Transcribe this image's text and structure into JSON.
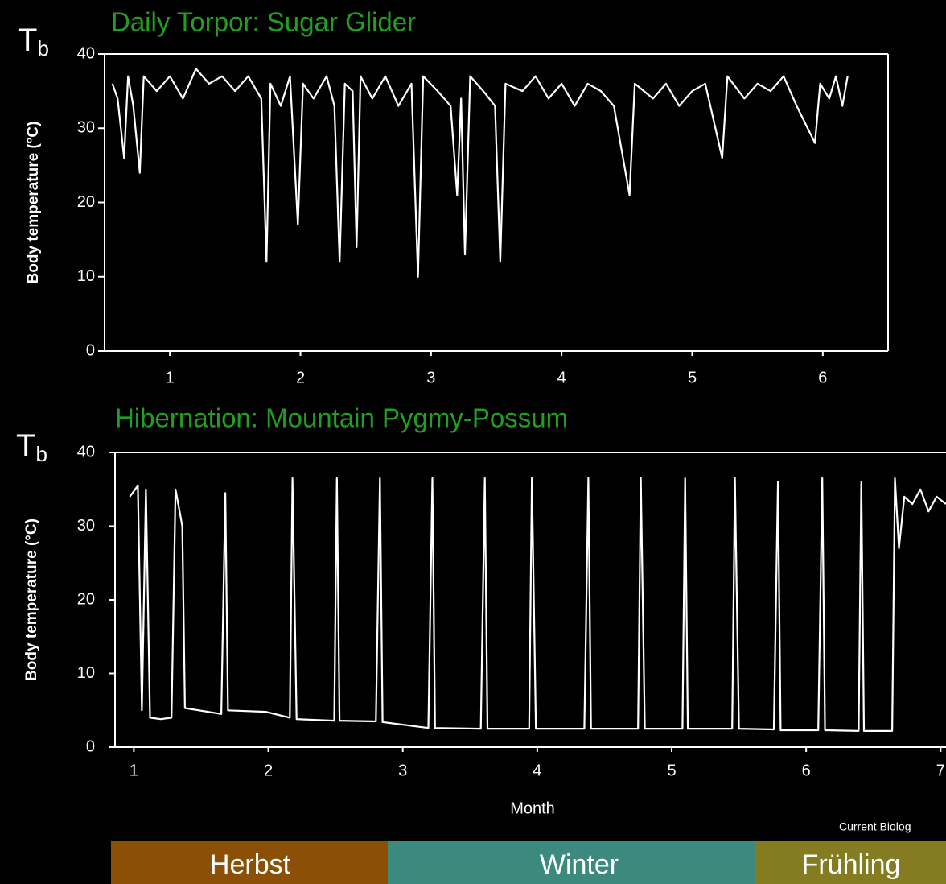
{
  "symbol": {
    "main": "T",
    "sub": "b"
  },
  "credit": "Current Biolog",
  "seasons": [
    {
      "label": "Herbst",
      "color": "#8b5006"
    },
    {
      "label": "Winter",
      "color": "#3c8a7d"
    },
    {
      "label": "Frühling",
      "color": "#857b20"
    }
  ],
  "chart_data": [
    {
      "type": "line",
      "title": "Daily Torpor: Sugar Glider",
      "title_color": "#20a020",
      "ylabel": "Body temperature (°C)",
      "color": "#ffffff",
      "xlim": [
        0.5,
        6.5
      ],
      "xticks": [
        1,
        2,
        3,
        4,
        5,
        6
      ],
      "ylim": [
        0,
        40
      ],
      "yticks": [
        0,
        10,
        20,
        30,
        40
      ],
      "x": [
        0.56,
        0.6,
        0.65,
        0.68,
        0.72,
        0.77,
        0.8,
        0.9,
        1.0,
        1.1,
        1.2,
        1.3,
        1.4,
        1.5,
        1.6,
        1.7,
        1.74,
        1.77,
        1.85,
        1.92,
        1.98,
        2.02,
        2.1,
        2.2,
        2.26,
        2.3,
        2.34,
        2.4,
        2.43,
        2.46,
        2.55,
        2.65,
        2.75,
        2.85,
        2.9,
        2.94,
        3.05,
        3.15,
        3.2,
        3.23,
        3.26,
        3.3,
        3.4,
        3.49,
        3.53,
        3.57,
        3.7,
        3.8,
        3.9,
        4.0,
        4.1,
        4.2,
        4.3,
        4.4,
        4.52,
        4.56,
        4.7,
        4.8,
        4.9,
        5.0,
        5.1,
        5.23,
        5.27,
        5.4,
        5.5,
        5.6,
        5.7,
        5.8,
        5.94,
        5.98,
        6.05,
        6.1,
        6.15,
        6.19
      ],
      "values": [
        36,
        34,
        26,
        37,
        33,
        24,
        37,
        35,
        37,
        34,
        38,
        36,
        37,
        35,
        37,
        34,
        12,
        36,
        33,
        37,
        17,
        36,
        34,
        37,
        33,
        12,
        36,
        35,
        14,
        37,
        34,
        37,
        33,
        36,
        10,
        37,
        35,
        33,
        21,
        34,
        13,
        37,
        35,
        33,
        12,
        36,
        35,
        37,
        34,
        36,
        33,
        36,
        35,
        33,
        21,
        36,
        34,
        36,
        33,
        35,
        36,
        26,
        37,
        34,
        36,
        35,
        37,
        33,
        28,
        36,
        34,
        37,
        33,
        37
      ]
    },
    {
      "type": "line",
      "title": "Hibernation: Mountain Pygmy-Possum",
      "title_color": "#20a020",
      "ylabel": "Body temperature (°C)",
      "xlabel": "Month",
      "color": "#ffffff",
      "xlim": [
        0.86,
        7.04
      ],
      "xticks": [
        1,
        2,
        3,
        4,
        5,
        6,
        7
      ],
      "ylim": [
        0,
        40
      ],
      "yticks": [
        0,
        10,
        20,
        30,
        40
      ],
      "x": [
        0.97,
        1.03,
        1.06,
        1.09,
        1.12,
        1.2,
        1.28,
        1.31,
        1.33,
        1.36,
        1.38,
        1.65,
        1.68,
        1.7,
        1.98,
        2.16,
        2.18,
        2.21,
        2.49,
        2.51,
        2.53,
        2.8,
        2.83,
        2.85,
        3.19,
        3.22,
        3.24,
        3.58,
        3.61,
        3.63,
        3.94,
        3.96,
        3.99,
        4.35,
        4.38,
        4.4,
        4.75,
        4.77,
        4.8,
        5.08,
        5.1,
        5.12,
        5.45,
        5.47,
        5.5,
        5.76,
        5.79,
        5.81,
        6.09,
        6.12,
        6.14,
        6.39,
        6.41,
        6.43,
        6.64,
        6.66,
        6.69,
        6.73,
        6.79,
        6.85,
        6.91,
        6.97,
        7.04
      ],
      "values": [
        34,
        35.5,
        5,
        35,
        4,
        3.8,
        4,
        35,
        33,
        30,
        5.3,
        4.5,
        34.5,
        5,
        4.8,
        4,
        36.5,
        3.8,
        3.6,
        36.5,
        3.6,
        3.5,
        36.5,
        3.4,
        2.6,
        36.5,
        2.6,
        2.5,
        36.5,
        2.5,
        2.5,
        36.5,
        2.5,
        2.5,
        36.5,
        2.5,
        2.5,
        36.5,
        2.5,
        2.5,
        36.5,
        2.5,
        2.5,
        36.5,
        2.5,
        2.4,
        36,
        2.3,
        2.3,
        36.5,
        2.3,
        2.2,
        36,
        2.2,
        2.2,
        36.5,
        27,
        34,
        33,
        35,
        32,
        34,
        33
      ]
    }
  ]
}
